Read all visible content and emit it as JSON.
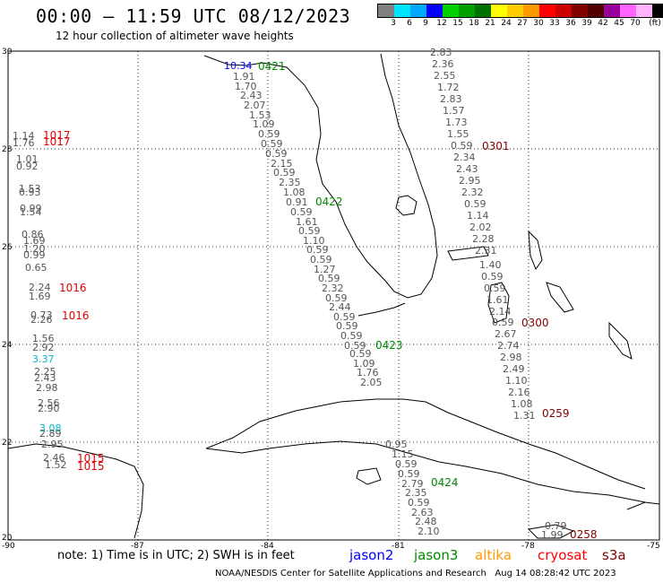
{
  "header": {
    "title": "00:00 – 11:59 UTC 08/12/2023",
    "subtitle": "12 hour collection of altimeter wave heights"
  },
  "legend": {
    "colors": [
      "#7f7f7f",
      "#00e5ff",
      "#00a8ff",
      "#0000ff",
      "#00d000",
      "#00a000",
      "#007000",
      "#ffff00",
      "#ffcc00",
      "#ff9900",
      "#ff0000",
      "#cc0000",
      "#800000",
      "#500000",
      "#990099",
      "#ff66ff",
      "#ffb3ff",
      "#000000"
    ],
    "ticks": [
      "3",
      "6",
      "9",
      "12",
      "15",
      "18",
      "21",
      "24",
      "27",
      "30",
      "33",
      "36",
      "39",
      "42",
      "45",
      "70"
    ],
    "unit": "(ft)"
  },
  "axes": {
    "lat_ticks": [
      "30",
      "28",
      "26",
      "24",
      "22",
      "20"
    ],
    "lon_ticks": [
      "-90",
      "-87",
      "-84",
      "-81",
      "-78",
      "-75"
    ]
  },
  "passes": [
    {
      "id": "0421",
      "color": "#008800"
    },
    {
      "id": "0422",
      "color": "#008800"
    },
    {
      "id": "0423",
      "color": "#008800"
    },
    {
      "id": "0424",
      "color": "#008800"
    },
    {
      "id": "0301",
      "color": "#800000"
    },
    {
      "id": "0300",
      "color": "#800000"
    },
    {
      "id": "0259",
      "color": "#800000"
    },
    {
      "id": "0258",
      "color": "#800000"
    }
  ],
  "pressure_labels": [
    "1017",
    "1017",
    "1016",
    "1016",
    "1015",
    "1015"
  ],
  "west_track_values": [
    "1.14",
    "1.76",
    "1.01",
    "0.92",
    "1.53",
    "0.93",
    "0.99",
    "1.54",
    "0.86",
    "1.69",
    "1.20",
    "0.99",
    "0.65",
    "2.24",
    "1.69",
    "0.73",
    "2.26",
    "1.56",
    "2.92",
    "3.37",
    "2.25",
    "2.43",
    "2.98",
    "2.56",
    "2.90",
    "3.08",
    "2.89",
    "2.95",
    "2.46",
    "1.52"
  ],
  "jason3_track_values": [
    "10.34",
    "1.91",
    "1.70",
    "2.43",
    "2.07",
    "1.53",
    "1.09",
    "0.59",
    "0.59",
    "0.59",
    "2.15",
    "0.59",
    "2.35",
    "1.08",
    "0.91",
    "0.59",
    "1.61",
    "0.59",
    "1.10",
    "0.59",
    "0.59",
    "1.27",
    "0.59",
    "2.32",
    "0.59",
    "2.44",
    "0.59",
    "0.59",
    "0.59",
    "0.59",
    "0.59",
    "1.09",
    "1.76",
    "2.05"
  ],
  "s3a_track_values": [
    "2.83",
    "2.36",
    "2.55",
    "1.72",
    "2.83",
    "1.57",
    "1.73",
    "1.55",
    "0.59",
    "2.34",
    "2.43",
    "2.95",
    "2.32",
    "0.59",
    "1.14",
    "2.02",
    "2.28",
    "2.31",
    "1.40",
    "0.59",
    "0.59",
    "1.61",
    "2.14",
    "0.59",
    "2.67",
    "2.74",
    "2.98",
    "2.49",
    "1.10",
    "2.16",
    "1.08",
    "1.31"
  ],
  "south_track_values": [
    "0.95",
    "1.15",
    "0.59",
    "0.59",
    "2.79",
    "2.35",
    "0.59",
    "2.63",
    "2.48",
    "2.10"
  ],
  "far_se_values": [
    "0.79",
    "1.99"
  ],
  "footer": {
    "note": "note:  1) Time is in UTC;  2) SWH is in feet",
    "satellites": [
      {
        "name": "jason2",
        "color": "#0000ff"
      },
      {
        "name": "jason3",
        "color": "#008800"
      },
      {
        "name": "altika",
        "color": "#ff9900"
      },
      {
        "name": "cryosat",
        "color": "#ff0000"
      },
      {
        "name": "s3a",
        "color": "#800000"
      }
    ],
    "credit": "NOAA/NESDIS Center for Satellite Applications and Research",
    "generated": "Aug 14 08:28:42 UTC 2023"
  }
}
